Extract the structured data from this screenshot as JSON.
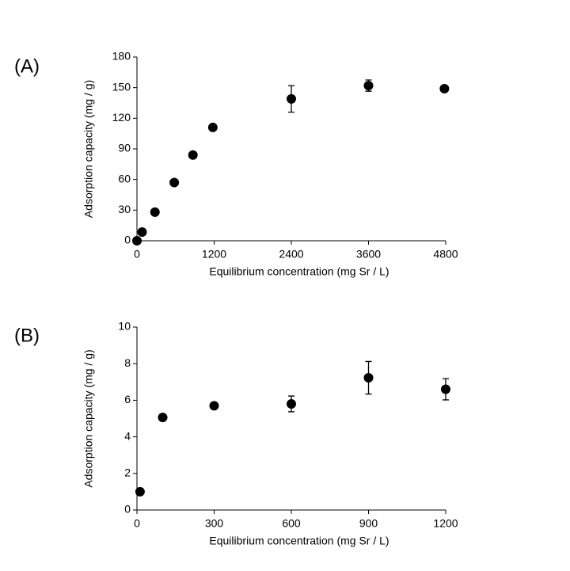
{
  "chart_data": [
    {
      "type": "scatter",
      "panel_label": "(A)",
      "xlabel": "Equilibrium  concentration (mg Sr / L)",
      "ylabel": "Adsorption capacity (mg / g)",
      "x": [
        0,
        80,
        280,
        580,
        870,
        1180,
        2400,
        3600,
        4780
      ],
      "y": [
        0,
        8.5,
        28,
        57,
        84,
        111,
        139,
        152,
        149
      ],
      "errors": [
        null,
        null,
        null,
        null,
        null,
        null,
        13,
        5.5,
        2
      ],
      "color": "#000000",
      "xlim": [
        0,
        4800
      ],
      "xticks": [
        0,
        1200,
        2400,
        3600,
        4800
      ],
      "ylim": [
        0,
        180
      ],
      "yticks": [
        0,
        30,
        60,
        90,
        120,
        150,
        180
      ]
    },
    {
      "type": "scatter",
      "panel_label": "(B)",
      "xlabel": "Equilibrium  concentration (mg Sr / L)",
      "ylabel": "Adsorption capacity (mg / g)",
      "x": [
        12,
        100,
        300,
        600,
        900,
        1200
      ],
      "y": [
        1.0,
        5.06,
        5.7,
        5.8,
        7.23,
        6.6
      ],
      "errors": [
        null,
        null,
        null,
        0.43,
        0.89,
        0.58
      ],
      "color": "#000000",
      "xlim": [
        0,
        1200
      ],
      "xticks": [
        0,
        300,
        600,
        900,
        1200
      ],
      "ylim": [
        0,
        10
      ],
      "yticks": [
        0,
        2,
        4,
        6,
        8,
        10
      ]
    }
  ]
}
